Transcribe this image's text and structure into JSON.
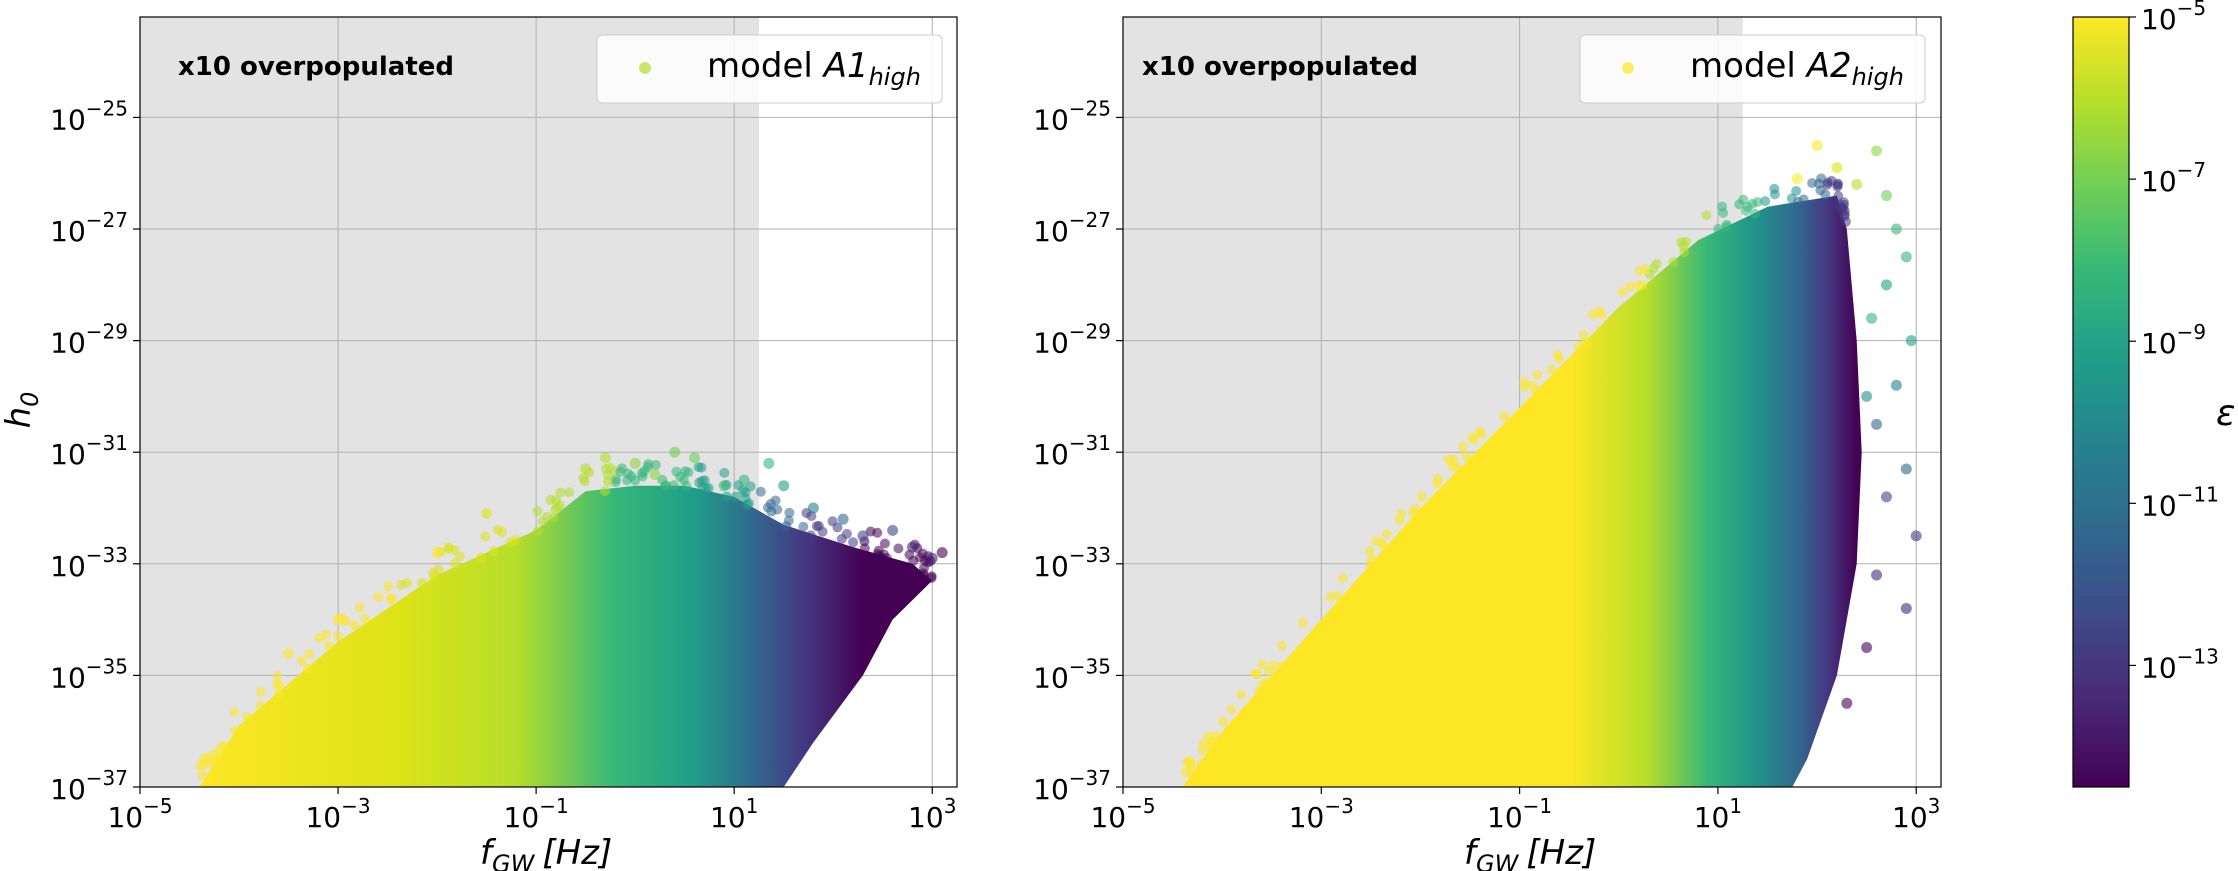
{
  "chart_data": [
    {
      "type": "scatter",
      "panel": "left",
      "annotation": "x10 overpopulated",
      "legend": {
        "label_prefix": "model ",
        "label_main": "A1",
        "label_sub": "high",
        "placement": "top-right",
        "marker_color": "#b5de2b"
      },
      "xlabel_main": "f",
      "xlabel_sub": "GW",
      "xlabel_unit": "[Hz]",
      "ylabel_main": "h",
      "ylabel_sub": "0",
      "xscale": "log",
      "yscale": "log",
      "xlim_exp": [
        -5,
        3.25
      ],
      "ylim_exp": [
        -37,
        -23.2
      ],
      "xticks": [
        {
          "base": "10",
          "exp": "−5"
        },
        {
          "base": "10",
          "exp": "−3"
        },
        {
          "base": "10",
          "exp": "−1"
        },
        {
          "base": "10",
          "exp": "1"
        },
        {
          "base": "10",
          "exp": "3"
        }
      ],
      "xtick_exps": [
        -5,
        -3,
        -1,
        1,
        3
      ],
      "yticks": [
        {
          "base": "10",
          "exp": "−37"
        },
        {
          "base": "10",
          "exp": "−35"
        },
        {
          "base": "10",
          "exp": "−33"
        },
        {
          "base": "10",
          "exp": "−31"
        },
        {
          "base": "10",
          "exp": "−29"
        },
        {
          "base": "10",
          "exp": "−27"
        },
        {
          "base": "10",
          "exp": "−25"
        }
      ],
      "ytick_exps": [
        -37,
        -35,
        -33,
        -31,
        -29,
        -27,
        -25
      ],
      "shaded_region_x_exp": [
        -5,
        1.25
      ],
      "grid": true,
      "cloud": {
        "upper_edge": [
          [
            -4.4,
            -37
          ],
          [
            -4.0,
            -35.9
          ],
          [
            -3.0,
            -34.4
          ],
          [
            -2.0,
            -33.2
          ],
          [
            -1.0,
            -32.4
          ],
          [
            -0.5,
            -31.7
          ],
          [
            0.0,
            -31.6
          ],
          [
            0.5,
            -31.6
          ],
          [
            1.0,
            -31.8
          ],
          [
            1.5,
            -32.3
          ],
          [
            2.2,
            -32.7
          ],
          [
            2.8,
            -33.0
          ],
          [
            3.0,
            -33.3
          ]
        ],
        "lower_edge": [
          [
            3.0,
            -33.3
          ],
          [
            2.6,
            -34.0
          ],
          [
            2.3,
            -35.0
          ],
          [
            1.8,
            -36.2
          ],
          [
            1.5,
            -37
          ]
        ],
        "color_stops": [
          [
            -4.4,
            "#fde725"
          ],
          [
            -2.4,
            "#dde318"
          ],
          [
            -1.2,
            "#b5de2b"
          ],
          [
            -0.2,
            "#35b779"
          ],
          [
            0.6,
            "#1f9e89"
          ],
          [
            1.2,
            "#31688e"
          ],
          [
            1.7,
            "#443983"
          ],
          [
            2.3,
            "#440154"
          ]
        ]
      },
      "outliers": [
        {
          "x": -0.5,
          "y": -31.3,
          "c": "#b5de2b"
        },
        {
          "x": -0.3,
          "y": -31.1,
          "c": "#b5de2b"
        },
        {
          "x": 0.0,
          "y": -31.2,
          "c": "#90d743"
        },
        {
          "x": 0.4,
          "y": -31.0,
          "c": "#6ece58"
        },
        {
          "x": 0.6,
          "y": -31.1,
          "c": "#6ece58"
        },
        {
          "x": 0.9,
          "y": -31.6,
          "c": "#35b779"
        },
        {
          "x": 1.35,
          "y": -31.2,
          "c": "#35b779"
        },
        {
          "x": 1.5,
          "y": -31.6,
          "c": "#1f9e89"
        },
        {
          "x": 1.8,
          "y": -32.0,
          "c": "#26828e"
        },
        {
          "x": 2.1,
          "y": -32.2,
          "c": "#31688e"
        },
        {
          "x": 2.3,
          "y": -32.5,
          "c": "#3e4a89"
        },
        {
          "x": 2.6,
          "y": -32.4,
          "c": "#3e4a89"
        },
        {
          "x": 2.8,
          "y": -32.7,
          "c": "#482878"
        },
        {
          "x": 3.0,
          "y": -32.9,
          "c": "#482878"
        },
        {
          "x": 3.1,
          "y": -32.8,
          "c": "#440154"
        },
        {
          "x": -1.5,
          "y": -32.1,
          "c": "#dde318"
        },
        {
          "x": -2.0,
          "y": -32.8,
          "c": "#fde725"
        },
        {
          "x": -3.0,
          "y": -34.0,
          "c": "#fde725"
        },
        {
          "x": -3.5,
          "y": -34.6,
          "c": "#fde725"
        },
        {
          "x": 1.1,
          "y": -31.5,
          "c": "#35b779"
        },
        {
          "x": 0.2,
          "y": -31.4,
          "c": "#90d743"
        }
      ]
    },
    {
      "type": "scatter",
      "panel": "right",
      "annotation": "x10 overpopulated",
      "legend": {
        "label_prefix": "model ",
        "label_main": "A2",
        "label_sub": "high",
        "placement": "top-right",
        "marker_color": "#fde725"
      },
      "xlabel_main": "f",
      "xlabel_sub": "GW",
      "xlabel_unit": "[Hz]",
      "ylabel_main": "",
      "ylabel_sub": "",
      "xscale": "log",
      "yscale": "log",
      "xlim_exp": [
        -5,
        3.25
      ],
      "ylim_exp": [
        -37,
        -23.2
      ],
      "xticks": [
        {
          "base": "10",
          "exp": "−5"
        },
        {
          "base": "10",
          "exp": "−3"
        },
        {
          "base": "10",
          "exp": "−1"
        },
        {
          "base": "10",
          "exp": "1"
        },
        {
          "base": "10",
          "exp": "3"
        }
      ],
      "xtick_exps": [
        -5,
        -3,
        -1,
        1,
        3
      ],
      "yticks": [
        {
          "base": "10",
          "exp": "−37"
        },
        {
          "base": "10",
          "exp": "−35"
        },
        {
          "base": "10",
          "exp": "−33"
        },
        {
          "base": "10",
          "exp": "−31"
        },
        {
          "base": "10",
          "exp": "−29"
        },
        {
          "base": "10",
          "exp": "−27"
        },
        {
          "base": "10",
          "exp": "−25"
        }
      ],
      "ytick_exps": [
        -37,
        -35,
        -33,
        -31,
        -29,
        -27,
        -25
      ],
      "shaded_region_x_exp": [
        -5,
        1.25
      ],
      "grid": true,
      "cloud": {
        "upper_edge": [
          [
            -4.4,
            -37
          ],
          [
            -4.0,
            -36.0
          ],
          [
            -3.0,
            -34.0
          ],
          [
            -2.0,
            -32.0
          ],
          [
            -1.0,
            -30.2
          ],
          [
            0.0,
            -28.4
          ],
          [
            0.8,
            -27.2
          ],
          [
            1.5,
            -26.6
          ],
          [
            2.2,
            -26.4
          ],
          [
            2.3,
            -27.0
          ]
        ],
        "lower_edge": [
          [
            2.3,
            -27.0
          ],
          [
            2.4,
            -29.0
          ],
          [
            2.45,
            -31.0
          ],
          [
            2.4,
            -33.0
          ],
          [
            2.2,
            -35.0
          ],
          [
            1.9,
            -36.5
          ],
          [
            1.75,
            -37
          ]
        ],
        "color_stops": [
          [
            -4.4,
            "#fde725"
          ],
          [
            -0.5,
            "#fde725"
          ],
          [
            0.3,
            "#b5de2b"
          ],
          [
            0.9,
            "#35b779"
          ],
          [
            1.4,
            "#21918c"
          ],
          [
            1.8,
            "#31688e"
          ],
          [
            2.1,
            "#443983"
          ],
          [
            2.4,
            "#440154"
          ]
        ]
      },
      "outliers": [
        {
          "x": 1.8,
          "y": -26.1,
          "c": "#fde725"
        },
        {
          "x": 2.0,
          "y": -25.5,
          "c": "#fde725"
        },
        {
          "x": 2.2,
          "y": -25.9,
          "c": "#dde318"
        },
        {
          "x": 2.4,
          "y": -26.2,
          "c": "#b5de2b"
        },
        {
          "x": 2.6,
          "y": -25.6,
          "c": "#90d743"
        },
        {
          "x": 2.7,
          "y": -26.4,
          "c": "#6ece58"
        },
        {
          "x": 2.8,
          "y": -27.0,
          "c": "#35b779"
        },
        {
          "x": 2.9,
          "y": -27.5,
          "c": "#35b779"
        },
        {
          "x": 2.7,
          "y": -28.0,
          "c": "#1f9e89"
        },
        {
          "x": 2.95,
          "y": -29.0,
          "c": "#1f9e89"
        },
        {
          "x": 2.8,
          "y": -29.8,
          "c": "#26828e"
        },
        {
          "x": 2.6,
          "y": -30.5,
          "c": "#31688e"
        },
        {
          "x": 2.9,
          "y": -31.3,
          "c": "#31688e"
        },
        {
          "x": 2.7,
          "y": -31.8,
          "c": "#3e4a89"
        },
        {
          "x": 3.0,
          "y": -32.5,
          "c": "#443983"
        },
        {
          "x": 2.6,
          "y": -33.2,
          "c": "#482878"
        },
        {
          "x": 2.9,
          "y": -33.8,
          "c": "#482878"
        },
        {
          "x": 2.5,
          "y": -34.5,
          "c": "#440154"
        },
        {
          "x": 2.3,
          "y": -35.5,
          "c": "#440154"
        },
        {
          "x": 2.5,
          "y": -30.0,
          "c": "#21918c"
        },
        {
          "x": 2.55,
          "y": -28.6,
          "c": "#35b779"
        }
      ]
    }
  ],
  "colorbar": {
    "label": "ε",
    "colormap": "viridis",
    "range_exp": [
      -14.5,
      -5
    ],
    "ticks": [
      {
        "base": "10",
        "exp": "−5"
      },
      {
        "base": "10",
        "exp": "−7"
      },
      {
        "base": "10",
        "exp": "−9"
      },
      {
        "base": "10",
        "exp": "−11"
      },
      {
        "base": "10",
        "exp": "−13"
      }
    ],
    "tick_exps": [
      -5,
      -7,
      -9,
      -11,
      -13
    ],
    "stops": [
      "#440154",
      "#482878",
      "#3e4a89",
      "#31688e",
      "#26828e",
      "#1f9e89",
      "#35b779",
      "#6ece58",
      "#b5de2b",
      "#fde725"
    ]
  }
}
